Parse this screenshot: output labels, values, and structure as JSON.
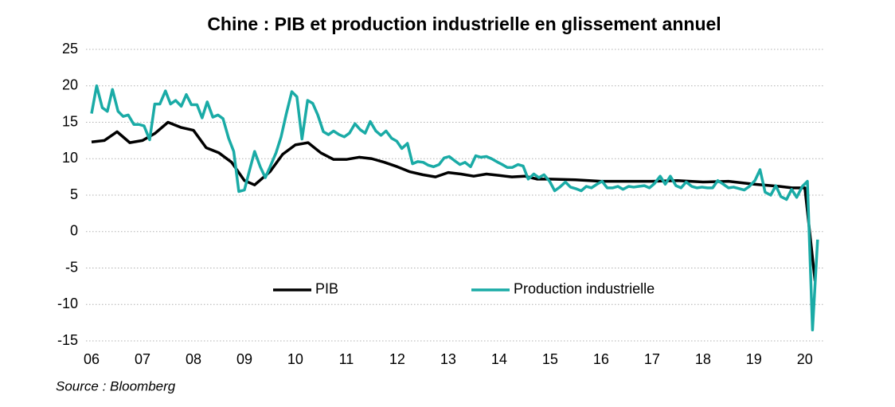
{
  "chart_data": {
    "type": "line",
    "title": "Chine : PIB et production industrielle en glissement annuel",
    "source": "Source : Bloomberg",
    "xlim": [
      2006,
      2020.3
    ],
    "xticks": [
      {
        "value": 2006,
        "label": "06"
      },
      {
        "value": 2007,
        "label": "07"
      },
      {
        "value": 2008,
        "label": "08"
      },
      {
        "value": 2009,
        "label": "09"
      },
      {
        "value": 2010,
        "label": "10"
      },
      {
        "value": 2011,
        "label": "11"
      },
      {
        "value": 2012,
        "label": "12"
      },
      {
        "value": 2013,
        "label": "13"
      },
      {
        "value": 2014,
        "label": "14"
      },
      {
        "value": 2015,
        "label": "15"
      },
      {
        "value": 2016,
        "label": "16"
      },
      {
        "value": 2017,
        "label": "17"
      },
      {
        "value": 2018,
        "label": "18"
      },
      {
        "value": 2019,
        "label": "19"
      },
      {
        "value": 2020,
        "label": "20"
      }
    ],
    "ylim": [
      -15,
      25
    ],
    "yticks": [
      25,
      20,
      15,
      10,
      5,
      0,
      -5,
      -10,
      -15
    ],
    "grid": true,
    "legend": "lower-center",
    "series": [
      {
        "name": "PIB",
        "color": "#000000",
        "x": [
          2006.0,
          2006.25,
          2006.5,
          2006.75,
          2007.0,
          2007.25,
          2007.5,
          2007.75,
          2008.0,
          2008.25,
          2008.5,
          2008.75,
          2009.0,
          2009.2,
          2009.5,
          2009.75,
          2010.0,
          2010.25,
          2010.5,
          2010.75,
          2011.0,
          2011.25,
          2011.5,
          2011.75,
          2012.0,
          2012.25,
          2012.5,
          2012.75,
          2013.0,
          2013.25,
          2013.5,
          2013.75,
          2014.0,
          2014.25,
          2014.5,
          2014.75,
          2015.0,
          2015.5,
          2016.0,
          2016.5,
          2017.0,
          2017.5,
          2018.0,
          2018.5,
          2019.0,
          2019.5,
          2019.75,
          2020.0,
          2020.2
        ],
        "values": [
          12.3,
          12.5,
          13.7,
          12.2,
          12.5,
          13.5,
          15.0,
          14.3,
          13.9,
          11.5,
          10.8,
          9.5,
          7.0,
          6.4,
          8.2,
          10.6,
          11.9,
          12.2,
          10.8,
          9.9,
          9.9,
          10.2,
          10.0,
          9.5,
          8.9,
          8.2,
          7.8,
          7.5,
          8.1,
          7.9,
          7.6,
          7.9,
          7.7,
          7.5,
          7.6,
          7.2,
          7.2,
          7.1,
          6.9,
          6.9,
          6.9,
          7.0,
          6.8,
          6.9,
          6.5,
          6.2,
          6.0,
          6.0,
          -6.8
        ]
      },
      {
        "name": "Production industrielle",
        "color": "#1aaba6",
        "x": [
          2006.0,
          2006.1,
          2006.21,
          2006.31,
          2006.41,
          2006.52,
          2006.62,
          2006.72,
          2006.83,
          2006.93,
          2007.03,
          2007.14,
          2007.24,
          2007.34,
          2007.45,
          2007.55,
          2007.65,
          2007.76,
          2007.86,
          2007.96,
          2008.07,
          2008.17,
          2008.27,
          2008.38,
          2008.48,
          2008.58,
          2008.69,
          2008.79,
          2008.89,
          2009.0,
          2009.1,
          2009.2,
          2009.31,
          2009.41,
          2009.51,
          2009.62,
          2009.72,
          2009.82,
          2009.93,
          2010.03,
          2010.13,
          2010.24,
          2010.34,
          2010.44,
          2010.55,
          2010.65,
          2010.75,
          2010.86,
          2010.96,
          2011.06,
          2011.17,
          2011.27,
          2011.37,
          2011.47,
          2011.58,
          2011.68,
          2011.78,
          2011.89,
          2011.99,
          2012.09,
          2012.2,
          2012.3,
          2012.4,
          2012.51,
          2012.61,
          2012.71,
          2012.82,
          2012.92,
          2013.02,
          2013.13,
          2013.23,
          2013.33,
          2013.44,
          2013.54,
          2013.64,
          2013.75,
          2013.85,
          2013.95,
          2014.06,
          2014.16,
          2014.26,
          2014.37,
          2014.47,
          2014.57,
          2014.68,
          2014.78,
          2014.88,
          2014.99,
          2015.09,
          2015.19,
          2015.3,
          2015.4,
          2015.5,
          2015.61,
          2015.71,
          2015.81,
          2015.92,
          2016.02,
          2016.12,
          2016.23,
          2016.33,
          2016.43,
          2016.54,
          2016.64,
          2016.74,
          2016.85,
          2016.95,
          2017.05,
          2017.16,
          2017.26,
          2017.36,
          2017.47,
          2017.57,
          2017.67,
          2017.78,
          2017.88,
          2017.98,
          2018.09,
          2018.19,
          2018.29,
          2018.4,
          2018.5,
          2018.6,
          2018.71,
          2018.81,
          2018.91,
          2019.02,
          2019.12,
          2019.22,
          2019.33,
          2019.43,
          2019.53,
          2019.64,
          2019.74,
          2019.84,
          2019.95,
          2020.05,
          2020.15,
          2020.25
        ],
        "values": [
          16.2,
          20.0,
          17.0,
          16.5,
          19.5,
          16.5,
          15.8,
          16.0,
          14.7,
          14.7,
          14.5,
          12.6,
          17.5,
          17.5,
          19.3,
          17.5,
          18.0,
          17.2,
          18.8,
          17.4,
          17.4,
          15.6,
          17.8,
          15.7,
          16.0,
          15.5,
          12.8,
          11.0,
          5.5,
          5.7,
          8.4,
          11.0,
          8.9,
          7.4,
          9.0,
          10.8,
          13.0,
          16.1,
          19.2,
          18.5,
          12.7,
          18.0,
          17.6,
          16.0,
          13.7,
          13.3,
          13.8,
          13.3,
          13.0,
          13.5,
          14.8,
          14.0,
          13.5,
          15.1,
          13.8,
          13.2,
          13.8,
          12.8,
          12.4,
          11.4,
          12.1,
          9.3,
          9.6,
          9.5,
          9.1,
          8.9,
          9.2,
          10.1,
          10.3,
          9.7,
          9.2,
          9.5,
          8.9,
          10.4,
          10.2,
          10.3,
          10.0,
          9.6,
          9.2,
          8.8,
          8.8,
          9.2,
          9.0,
          7.2,
          7.9,
          7.4,
          7.8,
          6.9,
          5.6,
          6.1,
          6.8,
          6.1,
          5.9,
          5.6,
          6.2,
          6.0,
          6.5,
          6.9,
          6.0,
          6.0,
          6.2,
          5.8,
          6.2,
          6.1,
          6.2,
          6.3,
          6.0,
          6.6,
          7.6,
          6.5,
          7.6,
          6.3,
          6.0,
          6.8,
          6.2,
          6.0,
          6.1,
          6.0,
          6.0,
          7.0,
          6.5,
          6.0,
          6.1,
          5.9,
          5.7,
          6.2,
          7.0,
          8.5,
          5.4,
          5.0,
          6.3,
          4.8,
          4.4,
          5.8,
          4.7,
          6.2,
          6.9,
          -13.5,
          -1.1
        ]
      }
    ]
  }
}
